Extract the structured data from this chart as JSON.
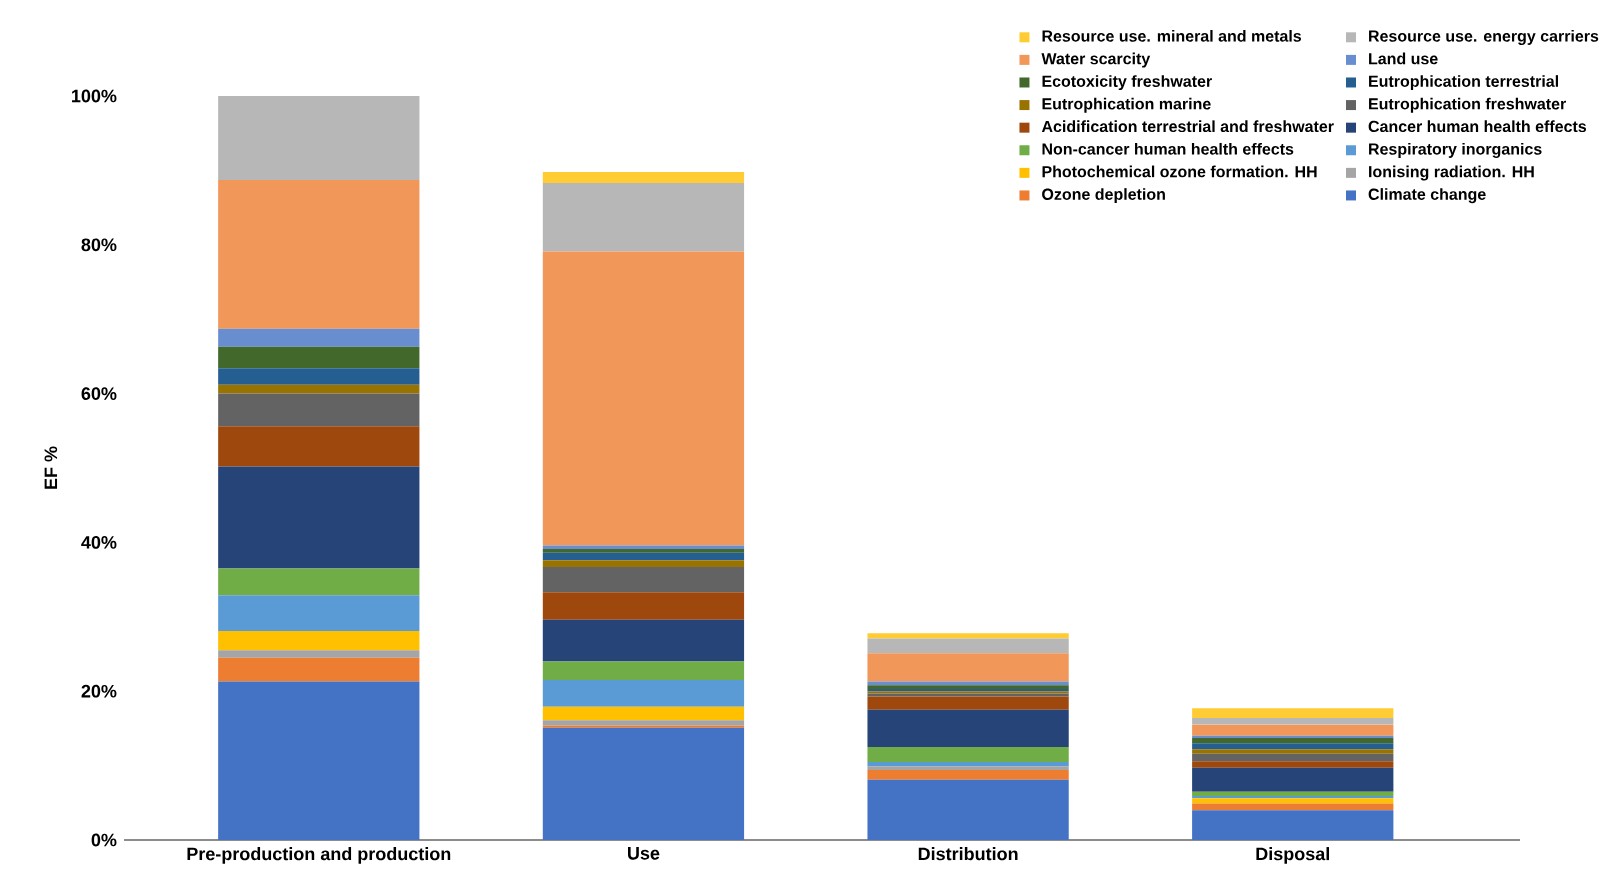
{
  "chart_data": {
    "type": "bar",
    "stacked": true,
    "ylabel": "EF %",
    "categories": [
      "Pre-production and production",
      "Use",
      "Distribution",
      "Disposal"
    ],
    "ylim": [
      0,
      100
    ],
    "yticks": [
      {
        "value": 0,
        "label": "0%"
      },
      {
        "value": 20,
        "label": "20%"
      },
      {
        "value": 40,
        "label": "40%"
      },
      {
        "value": 60,
        "label": "60%"
      },
      {
        "value": 80,
        "label": "80%"
      },
      {
        "value": 100,
        "label": "100%"
      }
    ],
    "legend": "top right",
    "grid": false,
    "series": [
      {
        "name": "Climate change",
        "color": "#4472c4",
        "values": [
          21.3,
          15.1,
          8.1,
          4.0
        ]
      },
      {
        "name": "Ozone depletion",
        "color": "#ed7d31",
        "values": [
          3.2,
          0.3,
          1.3,
          0.9
        ]
      },
      {
        "name": "Ionising radiation. HH",
        "color": "#a5a5a5",
        "values": [
          1.0,
          0.7,
          0.5,
          null
        ]
      },
      {
        "name": "Photochemical ozone formation. HH",
        "color": "#ffc000",
        "values": [
          2.6,
          1.8,
          0,
          0.7
        ]
      },
      {
        "name": "Respiratory inorganics",
        "color": "#5b9bd5",
        "values": [
          4.8,
          3.6,
          0.6,
          0.3
        ]
      },
      {
        "name": "Non-cancer human health effects",
        "color": "#70ad47",
        "values": [
          3.6,
          2.5,
          2.0,
          0.6
        ]
      },
      {
        "name": "Cancer human health effects",
        "color": "#264478",
        "values": [
          13.7,
          5.6,
          5.0,
          3.2
        ]
      },
      {
        "name": "Acidification terrestrial and freshwater",
        "color": "#9e480e",
        "values": [
          5.4,
          3.7,
          1.8,
          0.9
        ]
      },
      {
        "name": "Eutrophication freshwater",
        "color": "#636363",
        "values": [
          4.4,
          3.4,
          0.4,
          1.0
        ]
      },
      {
        "name": "Eutrophication marine",
        "color": "#997300",
        "values": [
          1.2,
          0.9,
          0.3,
          0.6
        ]
      },
      {
        "name": "Eutrophication terrestrial",
        "color": "#255e91",
        "values": [
          2.2,
          1.0,
          0.3,
          0.8
        ]
      },
      {
        "name": "Ecotoxicity freshwater",
        "color": "#43682b",
        "values": [
          2.9,
          0.5,
          0.5,
          0.7
        ]
      },
      {
        "name": "Land use",
        "color": "#698ed0",
        "values": [
          2.4,
          0.5,
          0.5,
          0.3
        ]
      },
      {
        "name": "Water scarcity",
        "color": "#f1975a",
        "values": [
          20.0,
          39.5,
          3.8,
          1.5
        ]
      },
      {
        "name": "Resource use. energy carriers",
        "color": "#b7b7b7",
        "values": [
          11.3,
          9.2,
          2.0,
          0.9
        ]
      },
      {
        "name": "Resource use. mineral and metals",
        "color": "#ffcd33",
        "values": [
          0,
          1.5,
          0.7,
          1.3
        ]
      }
    ]
  }
}
